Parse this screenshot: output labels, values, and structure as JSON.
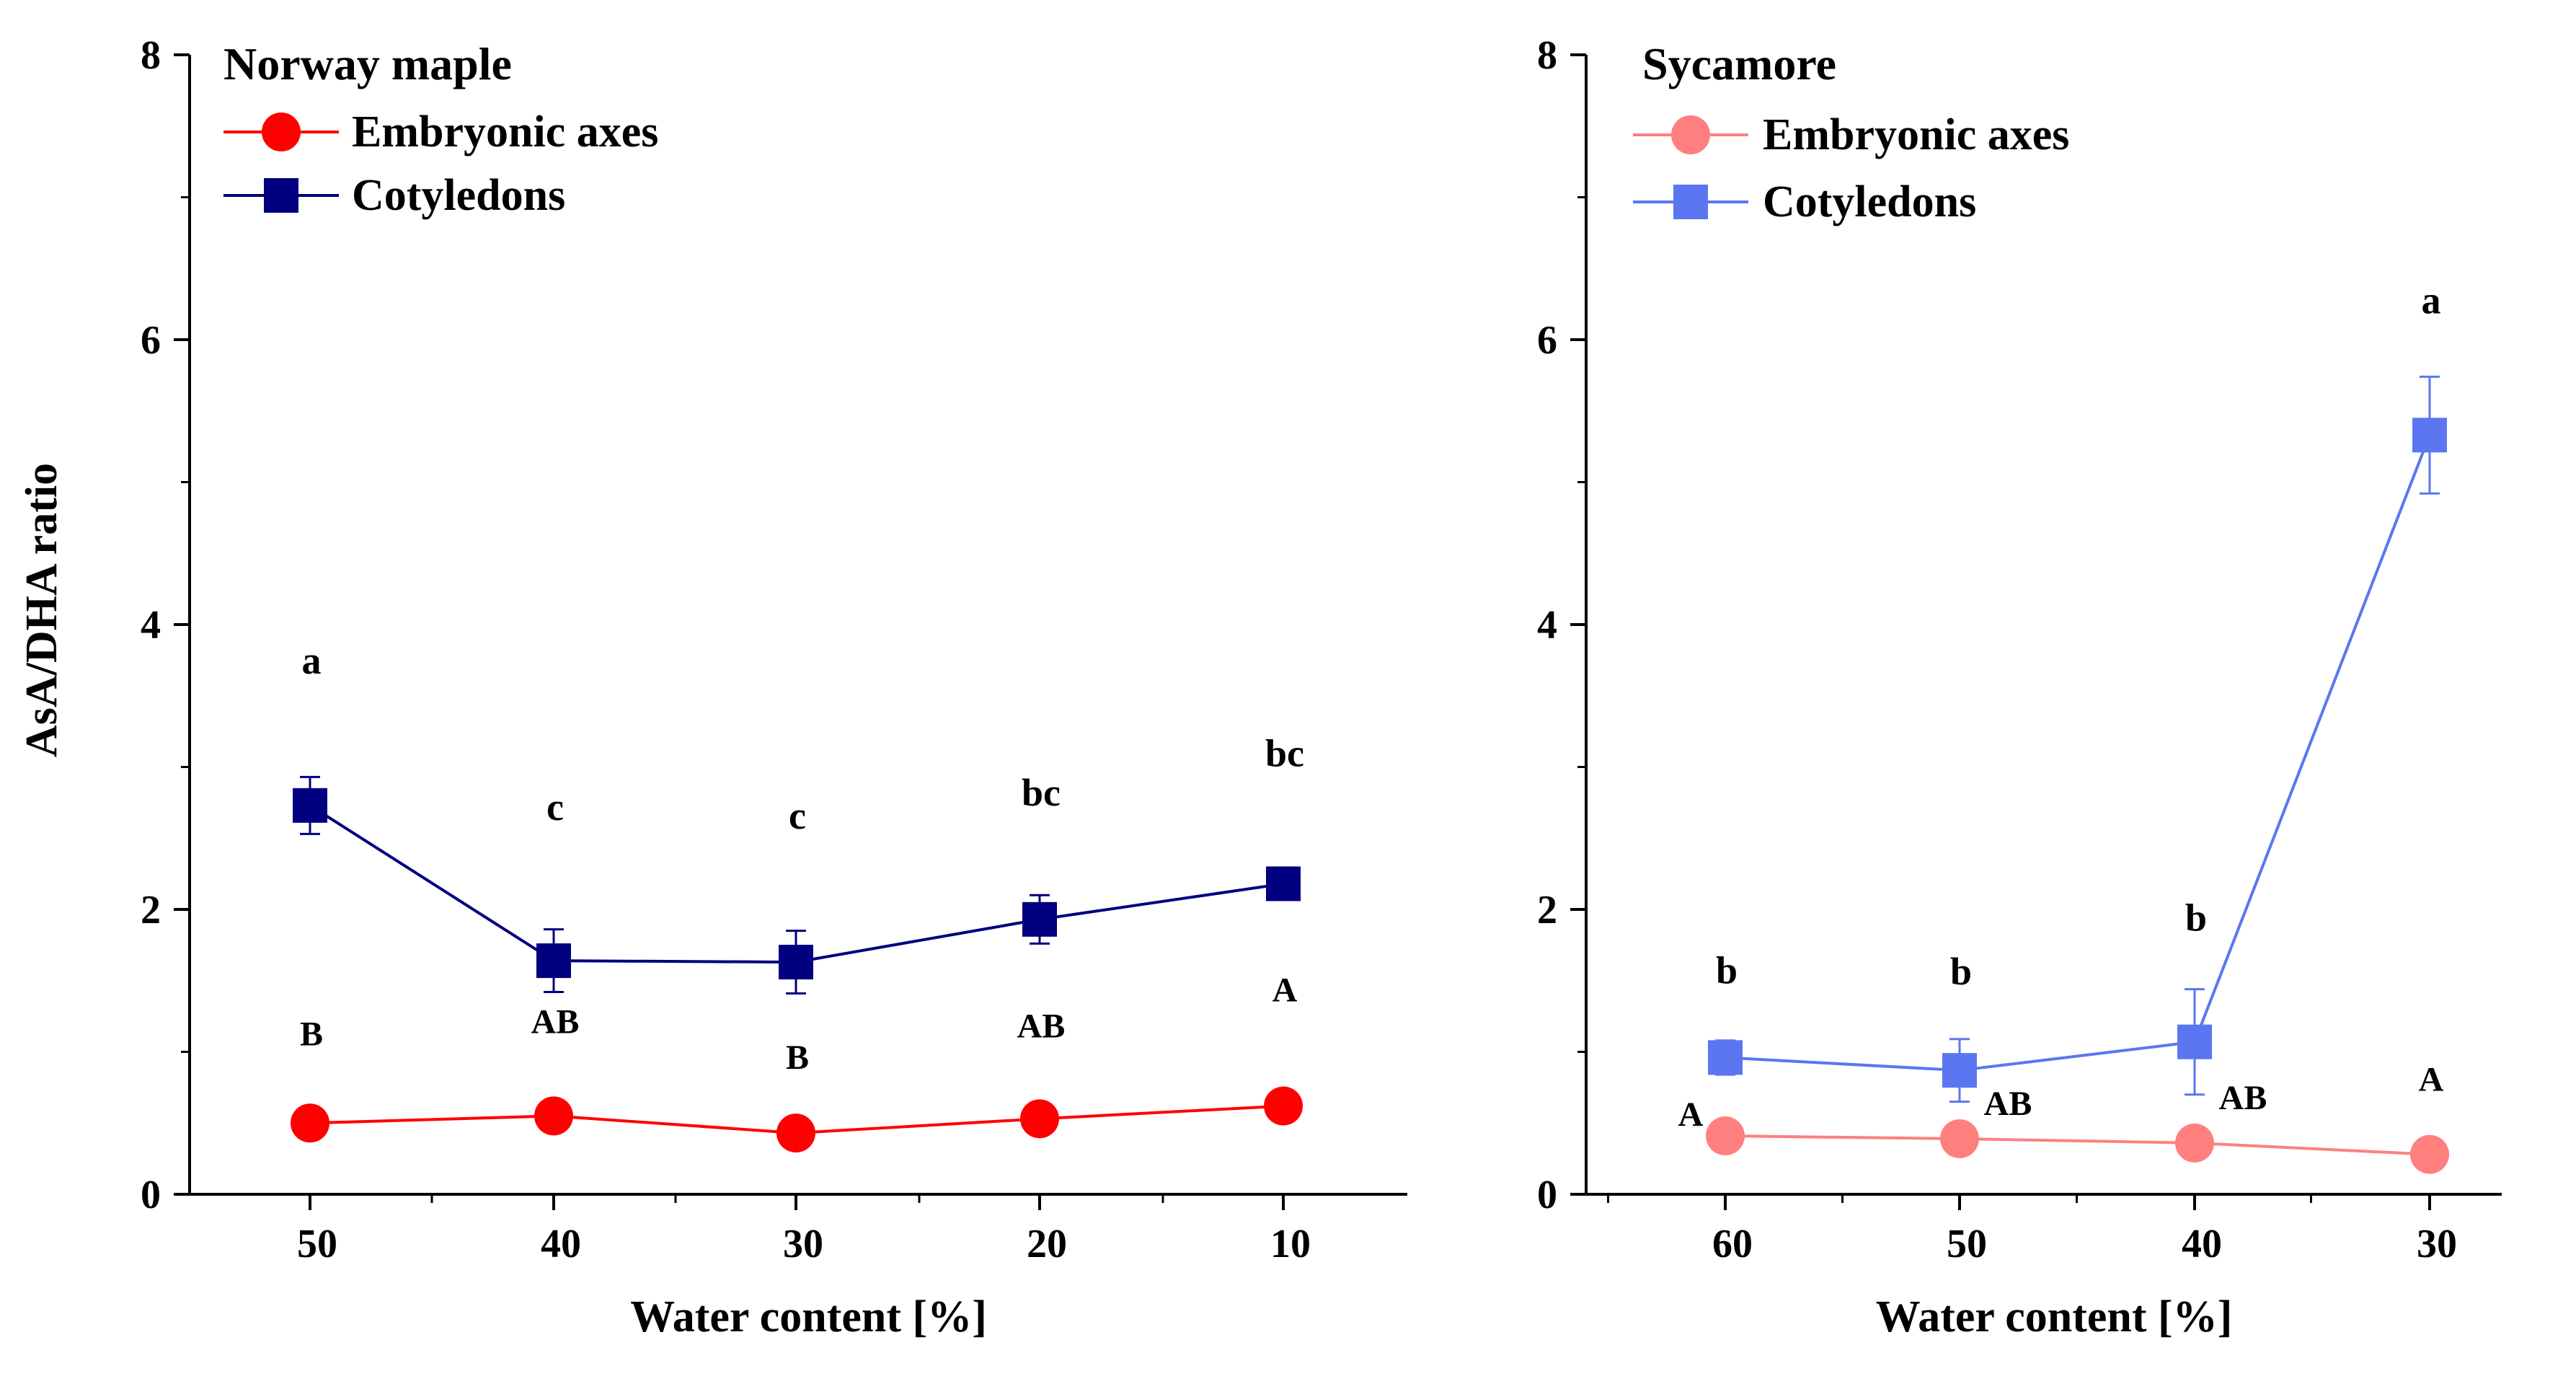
{
  "chart_data": [
    {
      "type": "line",
      "title": "Norway maple",
      "xlabel": "Water content [%]",
      "ylabel": "AsA/DHA ratio",
      "categories": [
        "50",
        "40",
        "30",
        "20",
        "10"
      ],
      "ylim": [
        0,
        8
      ],
      "yticks": [
        "0",
        "2",
        "4",
        "6",
        "8"
      ],
      "legend_position": "top-left",
      "series": [
        {
          "name": "Embryonic axes",
          "marker": "circle",
          "color": "#ff0000",
          "values": [
            0.5,
            0.55,
            0.43,
            0.53,
            0.62
          ],
          "errors": [
            0.02,
            0.02,
            0.02,
            0.02,
            0.02
          ],
          "labels": [
            "B",
            "AB",
            "B",
            "AB",
            "A"
          ]
        },
        {
          "name": "Cotyledons",
          "marker": "square",
          "color": "#000080",
          "values": [
            2.73,
            1.64,
            1.63,
            1.93,
            2.18
          ],
          "errors": [
            0.2,
            0.22,
            0.22,
            0.17,
            0.05
          ],
          "labels": [
            "a",
            "c",
            "c",
            "bc",
            "bc"
          ]
        }
      ]
    },
    {
      "type": "line",
      "title": "Sycamore",
      "xlabel": "Water content [%]",
      "ylabel": "",
      "categories": [
        "60",
        "50",
        "40",
        "30"
      ],
      "ylim": [
        0,
        8
      ],
      "yticks": [
        "0",
        "2",
        "4",
        "6",
        "8"
      ],
      "legend_position": "top-left",
      "series": [
        {
          "name": "Embryonic axes",
          "marker": "circle",
          "color": "#ff7f7f",
          "values": [
            0.41,
            0.39,
            0.36,
            0.28
          ],
          "errors": [
            0.02,
            0.02,
            0.02,
            0.02
          ],
          "labels": [
            "A",
            "AB",
            "AB",
            "A"
          ]
        },
        {
          "name": "Cotyledons",
          "marker": "square",
          "color": "#5b76f0",
          "values": [
            0.96,
            0.87,
            1.07,
            5.33
          ],
          "errors": [
            0.12,
            0.22,
            0.37,
            0.41
          ],
          "labels": [
            "b",
            "b",
            "b",
            "a"
          ]
        }
      ]
    }
  ]
}
